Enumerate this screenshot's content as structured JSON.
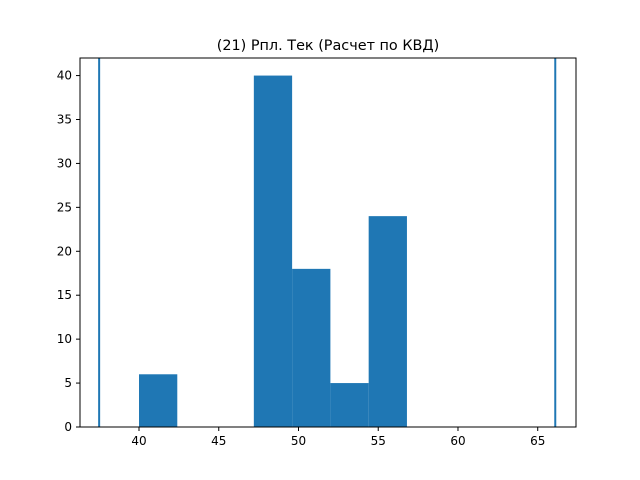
{
  "chart_data": {
    "type": "bar",
    "title": "(21) Рпл. Тек (Расчет по КВД)",
    "xlabel": "",
    "ylabel": "",
    "xlim": [
      36.3,
      67.4
    ],
    "ylim": [
      0,
      42
    ],
    "bar_color": "#1f77b4",
    "bins": [
      {
        "x0": 40.0,
        "x1": 42.4,
        "value": 6
      },
      {
        "x0": 42.4,
        "x1": 44.8,
        "value": 0
      },
      {
        "x0": 44.8,
        "x1": 47.2,
        "value": 0
      },
      {
        "x0": 47.2,
        "x1": 49.6,
        "value": 40
      },
      {
        "x0": 49.6,
        "x1": 52.0,
        "value": 18
      },
      {
        "x0": 52.0,
        "x1": 54.4,
        "value": 5
      },
      {
        "x0": 54.4,
        "x1": 56.8,
        "value": 24
      }
    ],
    "vlines": [
      37.5,
      66.1
    ],
    "xticks": [
      40,
      45,
      50,
      55,
      60,
      65
    ],
    "yticks": [
      0,
      5,
      10,
      15,
      20,
      25,
      30,
      35,
      40
    ],
    "grid": false,
    "legend": "none"
  }
}
